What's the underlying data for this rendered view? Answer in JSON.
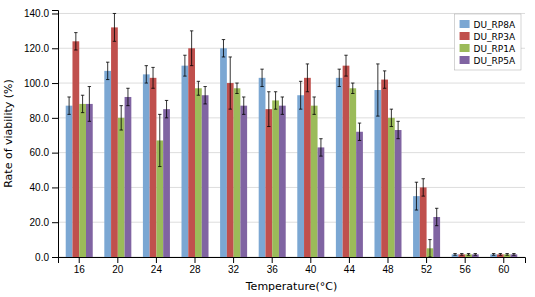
{
  "chart_data": {
    "type": "bar",
    "categories": [
      "16",
      "20",
      "24",
      "28",
      "32",
      "36",
      "40",
      "44",
      "48",
      "52",
      "56",
      "60"
    ],
    "series": [
      {
        "name": "DU_RP8A",
        "color": "#7BA7D3",
        "values": [
          87,
          107,
          105,
          110,
          120,
          103,
          93,
          103,
          96,
          35,
          1.5,
          1.5
        ],
        "errors": [
          5,
          5,
          5,
          6,
          5,
          5,
          8,
          5,
          15,
          8,
          0.5,
          0.5
        ]
      },
      {
        "name": "DU_RP3A",
        "color": "#C0504D",
        "values": [
          124,
          132,
          103,
          120,
          100,
          85,
          103,
          110,
          102,
          40,
          1.5,
          1.5
        ],
        "errors": [
          5,
          8,
          6,
          10,
          15,
          10,
          8,
          6,
          5,
          5,
          0.5,
          0.5
        ]
      },
      {
        "name": "DU_RP1A",
        "color": "#9BBB59",
        "values": [
          88,
          80,
          67,
          97,
          97,
          90,
          87,
          97,
          80,
          5,
          1.5,
          1.5
        ],
        "errors": [
          5,
          7,
          15,
          4,
          3,
          5,
          5,
          3,
          5,
          5,
          0.5,
          0.5
        ]
      },
      {
        "name": "DU_RP5A",
        "color": "#8064A2",
        "values": [
          88,
          92,
          85,
          93,
          87,
          87,
          63,
          72,
          73,
          23,
          1.5,
          1.5
        ],
        "errors": [
          10,
          5,
          5,
          5,
          5,
          5,
          5,
          5,
          5,
          5,
          0.5,
          0.5
        ]
      }
    ],
    "xlabel": "Temperature(°C)",
    "ylabel": "Rate of viability (%)",
    "ylim": [
      0,
      142
    ],
    "yticks": [
      {
        "value": 0.0,
        "label": "0.0"
      },
      {
        "value": 20.0,
        "label": "20.0"
      },
      {
        "value": 40.0,
        "label": "40.0"
      },
      {
        "value": 60.0,
        "label": "60.0"
      },
      {
        "value": 80.0,
        "label": "80.0"
      },
      {
        "value": 100.0,
        "label": "100.0"
      },
      {
        "value": 120.0,
        "label": "120.0"
      },
      {
        "value": 140.0,
        "label": "140.0"
      }
    ],
    "grid": true,
    "legend": "upper right"
  }
}
